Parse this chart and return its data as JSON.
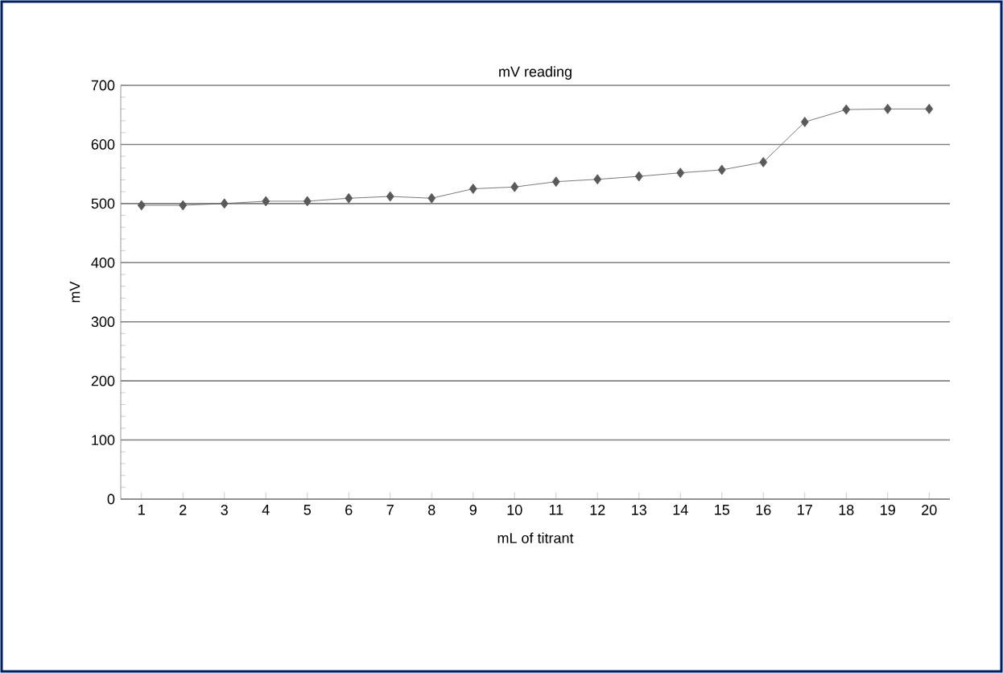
{
  "chart_data": {
    "type": "line",
    "title": "mV reading",
    "xlabel": "mL of titrant",
    "ylabel": "mV",
    "categories": [
      "1",
      "2",
      "3",
      "4",
      "5",
      "6",
      "7",
      "8",
      "9",
      "10",
      "11",
      "12",
      "13",
      "14",
      "15",
      "16",
      "17",
      "18",
      "19",
      "20"
    ],
    "series": [
      {
        "color": "#595959",
        "values": [
          497,
          497,
          500,
          504,
          504,
          509,
          512,
          509,
          525,
          528,
          537,
          541,
          546,
          552,
          557,
          570,
          638,
          659,
          660,
          660
        ]
      }
    ],
    "ylim": [
      0,
      700
    ],
    "yticks": [
      0,
      100,
      200,
      300,
      400,
      500,
      600,
      700
    ],
    "grid": "y",
    "marker": "diamond"
  }
}
